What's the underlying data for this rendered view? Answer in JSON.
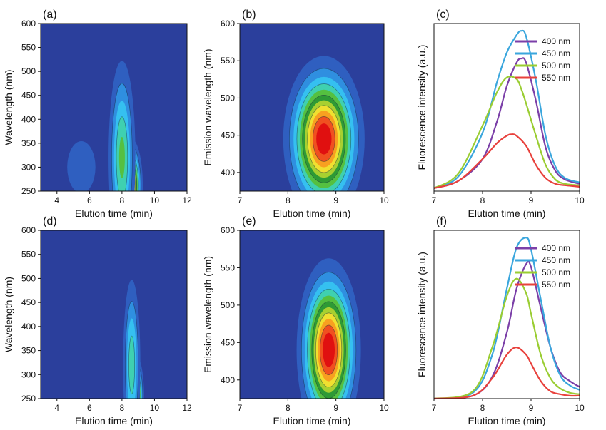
{
  "chart_data": [
    {
      "panel": "(a)",
      "type": "heatmap",
      "xlabel": "Elution time (min)",
      "ylabel": "Wavelength (nm)",
      "xlim": [
        3,
        12
      ],
      "ylim": [
        250,
        600
      ],
      "xticks": [
        4,
        6,
        8,
        10,
        12
      ],
      "yticks": [
        250,
        300,
        350,
        400,
        450,
        500,
        550,
        600
      ],
      "peaks": [
        {
          "x": 8.5,
          "y": 262,
          "amp": 1.0,
          "sx": 0.35,
          "sy": 45
        },
        {
          "x": 8.0,
          "y": 320,
          "amp": 0.45,
          "sx": 0.45,
          "sy": 110
        },
        {
          "x": 5.5,
          "y": 300,
          "amp": 0.15,
          "sx": 0.8,
          "sy": 50
        }
      ]
    },
    {
      "panel": "(b)",
      "type": "heatmap",
      "xlabel": "Elution time (min)",
      "ylabel": "Emission wavelength (nm)",
      "xlim": [
        7,
        10
      ],
      "ylim": [
        375,
        600
      ],
      "xticks": [
        7,
        8,
        9,
        10
      ],
      "yticks": [
        400,
        450,
        500,
        550,
        600
      ],
      "peaks": [
        {
          "x": 8.75,
          "y": 445,
          "amp": 1.0,
          "sx": 0.38,
          "sy": 50
        }
      ]
    },
    {
      "panel": "(c)",
      "type": "line",
      "xlabel": "Elution time (min)",
      "ylabel": "Fluorescence intensity (a.u.)",
      "xlim": [
        7,
        10
      ],
      "ylim": [
        0,
        1.15
      ],
      "xticks": [
        7,
        8,
        9,
        10
      ],
      "series": [
        {
          "name": "400 nm",
          "color": "#7b3fa8",
          "x": [
            7.0,
            7.5,
            8.0,
            8.3,
            8.5,
            8.7,
            8.8,
            8.9,
            9.1,
            9.3,
            9.5,
            9.7,
            10.0
          ],
          "y": [
            0.02,
            0.07,
            0.22,
            0.48,
            0.72,
            0.88,
            0.91,
            0.88,
            0.62,
            0.3,
            0.14,
            0.08,
            0.05
          ]
        },
        {
          "name": "450 nm",
          "color": "#3aa6dd",
          "x": [
            7.0,
            7.5,
            8.0,
            8.3,
            8.5,
            8.7,
            8.8,
            8.9,
            9.1,
            9.3,
            9.5,
            9.7,
            10.0
          ],
          "y": [
            0.02,
            0.1,
            0.4,
            0.75,
            0.95,
            1.07,
            1.1,
            1.06,
            0.76,
            0.38,
            0.17,
            0.09,
            0.06
          ]
        },
        {
          "name": "500 nm",
          "color": "#9acd32",
          "x": [
            7.0,
            7.5,
            8.0,
            8.3,
            8.5,
            8.7,
            8.8,
            8.9,
            9.1,
            9.3,
            9.5,
            9.7,
            10.0
          ],
          "y": [
            0.02,
            0.12,
            0.45,
            0.68,
            0.78,
            0.77,
            0.7,
            0.6,
            0.38,
            0.18,
            0.08,
            0.05,
            0.04
          ]
        },
        {
          "name": "550 nm",
          "color": "#e8413c",
          "x": [
            7.0,
            7.5,
            8.0,
            8.3,
            8.5,
            8.6,
            8.7,
            8.9,
            9.1,
            9.3,
            9.5,
            9.7,
            10.0
          ],
          "y": [
            0.02,
            0.07,
            0.22,
            0.33,
            0.38,
            0.39,
            0.38,
            0.31,
            0.18,
            0.09,
            0.05,
            0.04,
            0.03
          ]
        }
      ]
    },
    {
      "panel": "(d)",
      "type": "heatmap",
      "xlabel": "Elution time (min)",
      "ylabel": "Wavelength (nm)",
      "xlim": [
        3,
        12
      ],
      "ylim": [
        250,
        600
      ],
      "xticks": [
        4,
        6,
        8,
        10,
        12
      ],
      "yticks": [
        250,
        300,
        350,
        400,
        450,
        500,
        550,
        600
      ],
      "peaks": [
        {
          "x": 8.8,
          "y": 258,
          "amp": 1.0,
          "sx": 0.25,
          "sy": 38
        },
        {
          "x": 8.6,
          "y": 320,
          "amp": 0.4,
          "sx": 0.3,
          "sy": 100
        }
      ]
    },
    {
      "panel": "(e)",
      "type": "heatmap",
      "xlabel": "Elution time (min)",
      "ylabel": "Emission wavelength (nm)",
      "xlim": [
        7,
        10
      ],
      "ylim": [
        375,
        600
      ],
      "xticks": [
        7,
        8,
        9,
        10
      ],
      "yticks": [
        400,
        450,
        500,
        550,
        600
      ],
      "peaks": [
        {
          "x": 8.85,
          "y": 440,
          "amp": 1.0,
          "sx": 0.3,
          "sy": 55
        }
      ]
    },
    {
      "panel": "(f)",
      "type": "line",
      "xlabel": "Elution time (min)",
      "ylabel": "Fluorescence intensity (a.u.)",
      "xlim": [
        7,
        10
      ],
      "ylim": [
        0,
        1.15
      ],
      "xticks": [
        7,
        8,
        9,
        10
      ],
      "series": [
        {
          "name": "400 nm",
          "color": "#7b3fa8",
          "x": [
            7.0,
            7.8,
            8.2,
            8.5,
            8.7,
            8.9,
            9.0,
            9.2,
            9.4,
            9.6,
            9.8,
            10.0
          ],
          "y": [
            0.0,
            0.02,
            0.15,
            0.45,
            0.75,
            0.92,
            0.9,
            0.62,
            0.35,
            0.18,
            0.12,
            0.08
          ]
        },
        {
          "name": "450 nm",
          "color": "#3aa6dd",
          "x": [
            7.0,
            7.8,
            8.2,
            8.5,
            8.7,
            8.9,
            9.0,
            9.2,
            9.4,
            9.6,
            9.8,
            10.0
          ],
          "y": [
            0.0,
            0.04,
            0.3,
            0.75,
            1.03,
            1.1,
            1.02,
            0.68,
            0.35,
            0.16,
            0.09,
            0.06
          ]
        },
        {
          "name": "500 nm",
          "color": "#9acd32",
          "x": [
            7.0,
            7.8,
            8.2,
            8.5,
            8.7,
            8.9,
            9.0,
            9.2,
            9.4,
            9.6,
            9.8,
            10.0
          ],
          "y": [
            0.0,
            0.05,
            0.35,
            0.7,
            0.82,
            0.72,
            0.58,
            0.3,
            0.14,
            0.07,
            0.04,
            0.03
          ]
        },
        {
          "name": "550 nm",
          "color": "#e8413c",
          "x": [
            7.0,
            7.8,
            8.2,
            8.5,
            8.7,
            8.9,
            9.0,
            9.2,
            9.4,
            9.6,
            9.8,
            10.0
          ],
          "y": [
            0.0,
            0.02,
            0.14,
            0.3,
            0.35,
            0.3,
            0.24,
            0.12,
            0.05,
            0.03,
            0.02,
            0.02
          ]
        }
      ]
    }
  ],
  "colormap": [
    "#2b3f9c",
    "#2f5fc0",
    "#2f8fe0",
    "#35c0f0",
    "#3fd0b0",
    "#55c040",
    "#2e9a35",
    "#a8d030",
    "#f0e030",
    "#f8a020",
    "#f05020",
    "#e01010"
  ]
}
